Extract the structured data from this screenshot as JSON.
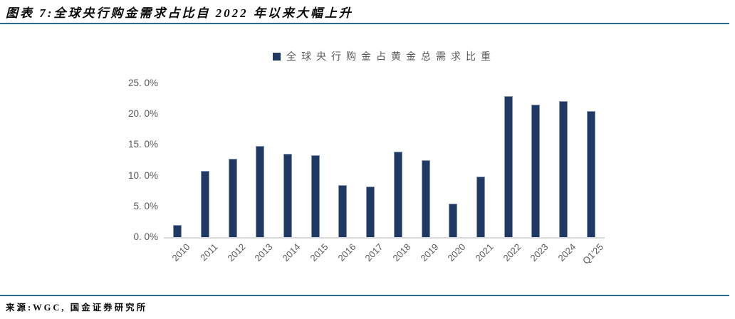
{
  "header": {
    "title": "图表 7:全球央行购金需求占比自 2022 年以来大幅上升"
  },
  "legend": {
    "label": "全球央行购金占黄金总需求比重"
  },
  "footer": {
    "source": "来源:WGC, 国金证券研究所"
  },
  "colors": {
    "bar": "#1f3864",
    "bar_border": "#8496b0",
    "rule": "#2c6e91",
    "axis_line": "#d9d9d9",
    "tick_text": "#595959"
  },
  "chart_data": {
    "type": "bar",
    "title": "图表 7:全球央行购金需求占比自 2022 年以来大幅上升",
    "legend_entries": [
      "全球央行购金占黄金总需求比重"
    ],
    "legend_position": "top",
    "grid": false,
    "xlabel": "",
    "ylabel": "",
    "ylim": [
      0,
      25
    ],
    "yticks": [
      0,
      5,
      10,
      15,
      20,
      25
    ],
    "ytick_labels": [
      "0. 0%",
      "5. 0%",
      "10. 0%",
      "15. 0%",
      "20. 0%",
      "25. 0%"
    ],
    "categories": [
      "2010",
      "2011",
      "2012",
      "2013",
      "2014",
      "2015",
      "2016",
      "2017",
      "2018",
      "2019",
      "2020",
      "2021",
      "2022",
      "2023",
      "2024",
      "Q1'25"
    ],
    "values": [
      2.0,
      10.8,
      12.7,
      14.8,
      13.6,
      13.3,
      8.4,
      8.2,
      13.9,
      12.5,
      5.4,
      9.8,
      22.9,
      21.5,
      22.1,
      20.5
    ]
  }
}
